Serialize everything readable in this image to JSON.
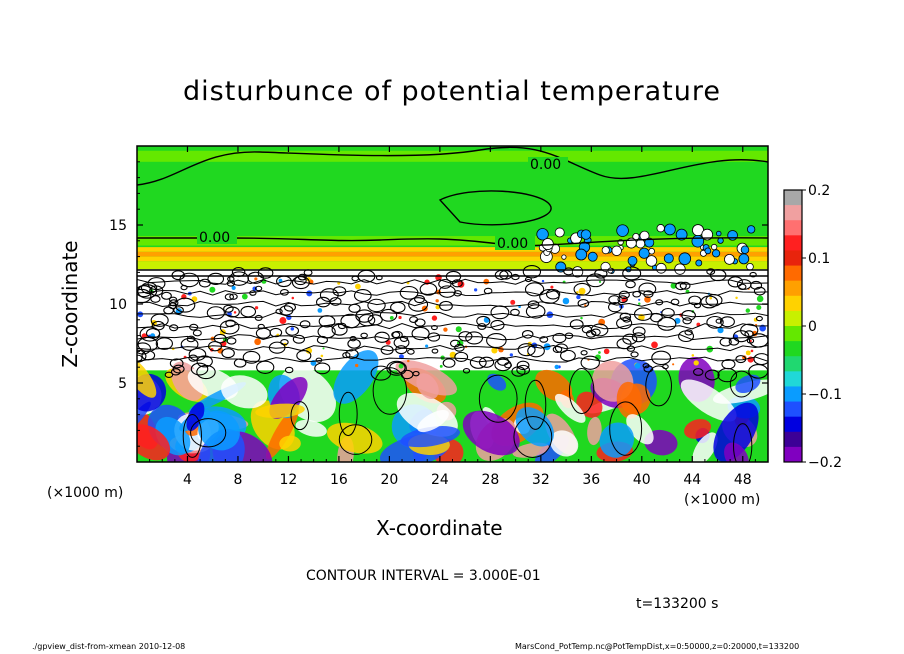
{
  "chart_data": {
    "type": "heatmap",
    "title": "disturbunce of potential temperature",
    "xlabel": "X-coordinate",
    "ylabel": "Z-coordinate",
    "x_unit_label": "(×1000 m)",
    "xlim": [
      0,
      50
    ],
    "ylim": [
      0,
      20
    ],
    "x_ticks": [
      4,
      8,
      12,
      16,
      20,
      24,
      28,
      32,
      36,
      40,
      44,
      48
    ],
    "y_ticks": [
      5,
      10,
      15
    ],
    "colorbar": {
      "range": [
        -0.2,
        0.2
      ],
      "ticks": [
        "0.2",
        "0.1",
        "0",
        "−0.1",
        "−0.2"
      ],
      "colors": [
        "#a8a8a8",
        "#f0a0a0",
        "#ff7070",
        "#ff2020",
        "#e8240c",
        "#ff6a00",
        "#ffa000",
        "#ffd200",
        "#c8f000",
        "#64e800",
        "#20d820",
        "#20d870",
        "#20d8d8",
        "#0a9cff",
        "#1e50ff",
        "#0000e0",
        "#3c0096",
        "#8000c0"
      ]
    },
    "contour_labels": [
      "0.00",
      "0.00",
      "0.00"
    ],
    "contour_interval": "CONTOUR INTERVAL = 3.000E-01",
    "time": "t=133200 s",
    "footer_left": "./gpview_dist-from-xmean  2010-12-08",
    "footer_right": "MarsCond_PotTemp.nc@PotTempDist,x=0:50000,z=0:20000,t=133200"
  }
}
